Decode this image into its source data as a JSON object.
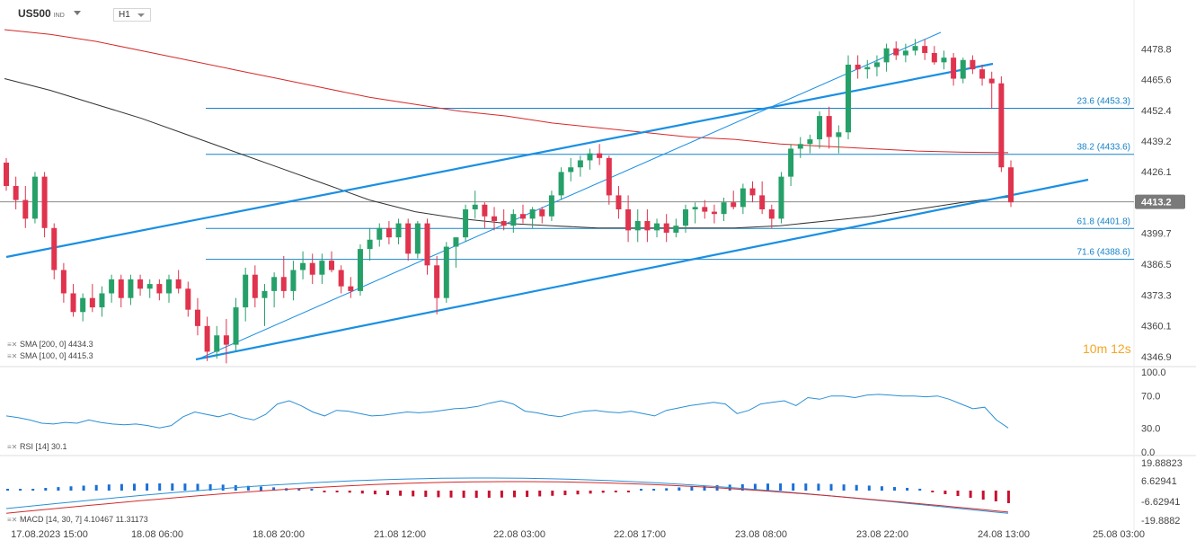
{
  "header": {
    "symbol": "US500",
    "symbol_type": "IND",
    "timeframe": "H1"
  },
  "indicators": {
    "sma200": {
      "name": "SMA [200, 0]",
      "value": "4434.3",
      "color": "#d62828"
    },
    "sma100": {
      "name": "SMA [100, 0]",
      "value": "4415.3",
      "color": "#333333"
    },
    "rsi": {
      "name": "RSI [14]",
      "value": "30.1",
      "color": "#2a8fd6"
    },
    "macd": {
      "name": "MACD [14, 30, 7]",
      "value1": "4.10467",
      "value2": "11.31173"
    }
  },
  "timer": "10m 12s",
  "current_price": "4413.2",
  "colors": {
    "up": "#26a069",
    "down": "#e0334d",
    "trend": "#1a8fe3",
    "fib": "#1682c8",
    "price_badge": "#7a7a7a",
    "timer": "#f5a623"
  },
  "price_axis": [
    "4478.8",
    "4465.6",
    "4452.4",
    "4439.2",
    "4426.1",
    "4413.2",
    "4399.7",
    "4386.5",
    "4373.3",
    "4360.1",
    "4346.9"
  ],
  "rsi_axis": [
    "100.0",
    "70.0",
    "30.0",
    "0.0"
  ],
  "macd_axis": [
    "19.88823",
    "6.62941",
    "-6.62941",
    "-19.8882"
  ],
  "time_axis": [
    "17.08.2023 15:00",
    "18.08 06:00",
    "18.08 20:00",
    "21.08 12:00",
    "22.08 03:00",
    "22.08 17:00",
    "23.08 08:00",
    "23.08 22:00",
    "24.08 13:00",
    "25.08 03:00"
  ],
  "fib_levels": [
    {
      "label": "23.6 (4453.3)",
      "price": 4453.3
    },
    {
      "label": "38.2 (4433.6)",
      "price": 4433.6
    },
    {
      "label": "61.8 (4401.8)",
      "price": 4401.8
    },
    {
      "label": "71.6 (4388.6)",
      "price": 4388.6
    }
  ],
  "chart_data": {
    "type": "candlestick",
    "symbol": "US500",
    "timeframe": "H1",
    "y_range": [
      4343,
      4487
    ],
    "candles": [
      [
        4430,
        4432,
        4418,
        4420
      ],
      [
        4420,
        4424,
        4410,
        4414
      ],
      [
        4414,
        4420,
        4402,
        4406
      ],
      [
        4406,
        4426,
        4404,
        4424
      ],
      [
        4424,
        4426,
        4398,
        4402
      ],
      [
        4402,
        4404,
        4380,
        4384
      ],
      [
        4384,
        4387,
        4370,
        4374
      ],
      [
        4374,
        4378,
        4364,
        4366
      ],
      [
        4366,
        4374,
        4362,
        4372
      ],
      [
        4372,
        4378,
        4366,
        4368
      ],
      [
        4368,
        4377,
        4364,
        4374
      ],
      [
        4374,
        4382,
        4370,
        4380
      ],
      [
        4380,
        4382,
        4368,
        4372
      ],
      [
        4372,
        4382,
        4369,
        4380
      ],
      [
        4380,
        4382,
        4373,
        4376
      ],
      [
        4376,
        4380,
        4372,
        4378
      ],
      [
        4378,
        4380,
        4371,
        4374
      ],
      [
        4374,
        4382,
        4370,
        4380
      ],
      [
        4380,
        4384,
        4374,
        4376
      ],
      [
        4376,
        4379,
        4364,
        4367
      ],
      [
        4367,
        4372,
        4356,
        4360
      ],
      [
        4360,
        4364,
        4345,
        4349
      ],
      [
        4349,
        4360,
        4346,
        4356
      ],
      [
        4356,
        4363,
        4344,
        4352
      ],
      [
        4352,
        4372,
        4349,
        4368
      ],
      [
        4368,
        4385,
        4362,
        4382
      ],
      [
        4382,
        4386,
        4368,
        4372
      ],
      [
        4372,
        4378,
        4360,
        4375
      ],
      [
        4375,
        4383,
        4368,
        4381
      ],
      [
        4381,
        4390,
        4372,
        4375
      ],
      [
        4375,
        4388,
        4371,
        4384
      ],
      [
        4384,
        4392,
        4380,
        4387
      ],
      [
        4387,
        4391,
        4378,
        4382
      ],
      [
        4382,
        4391,
        4378,
        4388
      ],
      [
        4388,
        4392,
        4383,
        4384
      ],
      [
        4384,
        4386,
        4374,
        4377
      ],
      [
        4377,
        4381,
        4372,
        4375
      ],
      [
        4375,
        4395,
        4373,
        4393
      ],
      [
        4393,
        4402,
        4388,
        4397
      ],
      [
        4397,
        4404,
        4394,
        4402
      ],
      [
        4402,
        4405,
        4395,
        4398
      ],
      [
        4398,
        4406,
        4395,
        4404
      ],
      [
        4404,
        4406,
        4388,
        4391
      ],
      [
        4391,
        4405,
        4389,
        4404
      ],
      [
        4404,
        4406,
        4382,
        4386
      ],
      [
        4386,
        4390,
        4365,
        4372
      ],
      [
        4372,
        4396,
        4370,
        4394
      ],
      [
        4394,
        4398,
        4385,
        4398
      ],
      [
        4398,
        4412,
        4396,
        4410
      ],
      [
        4410,
        4418,
        4406,
        4412
      ],
      [
        4412,
        4413,
        4402,
        4407
      ],
      [
        4407,
        4411,
        4401,
        4405
      ],
      [
        4405,
        4410,
        4401,
        4403
      ],
      [
        4403,
        4410,
        4400,
        4408
      ],
      [
        4408,
        4412,
        4404,
        4406
      ],
      [
        4406,
        4411,
        4402,
        4410
      ],
      [
        4410,
        4411,
        4404,
        4407
      ],
      [
        4407,
        4418,
        4405,
        4416
      ],
      [
        4416,
        4428,
        4414,
        4426
      ],
      [
        4426,
        4432,
        4422,
        4428
      ],
      [
        4428,
        4433,
        4424,
        4431
      ],
      [
        4431,
        4436,
        4427,
        4434
      ],
      [
        4434,
        4438,
        4429,
        4432
      ],
      [
        4432,
        4433,
        4412,
        4416
      ],
      [
        4416,
        4420,
        4406,
        4410
      ],
      [
        4410,
        4416,
        4396,
        4401
      ],
      [
        4401,
        4410,
        4396,
        4405
      ],
      [
        4405,
        4410,
        4396,
        4401
      ],
      [
        4401,
        4406,
        4398,
        4404
      ],
      [
        4404,
        4408,
        4396,
        4400
      ],
      [
        4400,
        4406,
        4398,
        4403
      ],
      [
        4403,
        4412,
        4400,
        4410
      ],
      [
        4410,
        4413,
        4404,
        4411
      ],
      [
        4411,
        4414,
        4406,
        4409
      ],
      [
        4409,
        4412,
        4404,
        4408
      ],
      [
        4408,
        4415,
        4405,
        4413
      ],
      [
        4413,
        4418,
        4410,
        4411
      ],
      [
        4411,
        4421,
        4408,
        4419
      ],
      [
        4419,
        4422,
        4413,
        4416
      ],
      [
        4416,
        4422,
        4408,
        4410
      ],
      [
        4410,
        4412,
        4402,
        4406
      ],
      [
        4406,
        4426,
        4404,
        4424
      ],
      [
        4424,
        4438,
        4420,
        4436
      ],
      [
        4436,
        4441,
        4432,
        4438
      ],
      [
        4438,
        4442,
        4434,
        4440
      ],
      [
        4440,
        4452,
        4436,
        4450
      ],
      [
        4450,
        4454,
        4436,
        4441
      ],
      [
        4441,
        4446,
        4434,
        4443
      ],
      [
        4443,
        4476,
        4440,
        4472
      ],
      [
        4472,
        4476,
        4466,
        4470
      ],
      [
        4470,
        4474,
        4466,
        4471
      ],
      [
        4471,
        4476,
        4467,
        4473
      ],
      [
        4473,
        4481,
        4469,
        4479
      ],
      [
        4479,
        4482,
        4474,
        4476
      ],
      [
        4476,
        4481,
        4473,
        4478
      ],
      [
        4478,
        4483,
        4476,
        4480
      ],
      [
        4480,
        4483,
        4474,
        4477
      ],
      [
        4477,
        4480,
        4472,
        4473
      ],
      [
        4473,
        4478,
        4470,
        4475
      ],
      [
        4475,
        4477,
        4463,
        4466
      ],
      [
        4466,
        4475,
        4464,
        4474
      ],
      [
        4474,
        4476,
        4468,
        4470
      ],
      [
        4470,
        4472,
        4463,
        4466
      ],
      [
        4466,
        4469,
        4453,
        4464
      ],
      [
        4464,
        4467,
        4426,
        4428
      ],
      [
        4428,
        4431,
        4411,
        4413
      ]
    ],
    "sma200": [
      4487,
      4485,
      4482,
      4478,
      4474,
      4470,
      4466,
      4462,
      4458,
      4455,
      4452,
      4450,
      4447,
      4445,
      4443,
      4441,
      4440,
      4438,
      4437,
      4436,
      4435,
      4434.5,
      4434.3
    ],
    "sma100": [
      4466,
      4461,
      4455,
      4449,
      4442,
      4435,
      4428,
      4421,
      4414,
      4409,
      4406,
      4404,
      4403,
      4402,
      4402,
      4402,
      4402,
      4403,
      4405,
      4407,
      4410,
      4413,
      4415.3
    ],
    "rsi": [
      45,
      43,
      40,
      36,
      35,
      37,
      36,
      40,
      37,
      35,
      34,
      35,
      33,
      30,
      33,
      44,
      50,
      47,
      44,
      48,
      43,
      40,
      47,
      60,
      64,
      58,
      50,
      45,
      52,
      51,
      48,
      45,
      46,
      48,
      50,
      49,
      50,
      52,
      54,
      55,
      57,
      61,
      64,
      60,
      51,
      49,
      46,
      44,
      48,
      51,
      52,
      50,
      49,
      51,
      48,
      45,
      52,
      55,
      58,
      60,
      62,
      60,
      48,
      52,
      60,
      62,
      64,
      58,
      68,
      66,
      70,
      70,
      68,
      71,
      72,
      71,
      70,
      70,
      69,
      70,
      66,
      60,
      54,
      56,
      40,
      30
    ]
  }
}
